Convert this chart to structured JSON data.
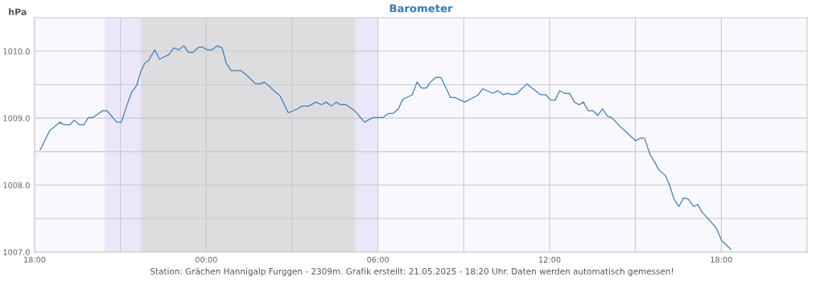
{
  "chart_data": {
    "type": "line",
    "title": "Barometer",
    "ylabel": "hPa",
    "annotations": [
      "Station: Grächen Hannigalp Furggen - 2309m. Grafik erstellt: 21.05.2025 - 18:20 Uhr. Daten werden automatisch gemessen!"
    ],
    "x": [
      "2025-05-20T18:12",
      "2025-05-20T18:32",
      "2025-05-20T18:40",
      "2025-05-20T18:53",
      "2025-05-20T19:02",
      "2025-05-20T19:14",
      "2025-05-20T19:23",
      "2025-05-20T19:34",
      "2025-05-20T19:43",
      "2025-05-20T19:53",
      "2025-05-20T20:03",
      "2025-05-20T20:22",
      "2025-05-20T20:32",
      "2025-05-20T20:52",
      "2025-05-20T21:02",
      "2025-05-20T21:12",
      "2025-05-20T21:23",
      "2025-05-20T21:34",
      "2025-05-20T21:43",
      "2025-05-20T21:51",
      "2025-05-20T21:59",
      "2025-05-20T22:12",
      "2025-05-20T22:22",
      "2025-05-20T22:42",
      "2025-05-20T22:52",
      "2025-05-20T23:02",
      "2025-05-20T23:13",
      "2025-05-20T23:23",
      "2025-05-20T23:32",
      "2025-05-20T23:44",
      "2025-05-20T23:52",
      "2025-05-21T00:02",
      "2025-05-21T00:12",
      "2025-05-21T00:23",
      "2025-05-21T00:33",
      "2025-05-21T00:42",
      "2025-05-21T00:52",
      "2025-05-21T01:13",
      "2025-05-21T01:25",
      "2025-05-21T01:42",
      "2025-05-21T01:53",
      "2025-05-21T02:01",
      "2025-05-21T02:10",
      "2025-05-21T02:27",
      "2025-05-21T02:35",
      "2025-05-21T02:52",
      "2025-05-21T03:12",
      "2025-05-21T03:20",
      "2025-05-21T03:35",
      "2025-05-21T03:50",
      "2025-05-21T04:02",
      "2025-05-21T04:11",
      "2025-05-21T04:23",
      "2025-05-21T04:32",
      "2025-05-21T04:42",
      "2025-05-21T04:53",
      "2025-05-21T05:13",
      "2025-05-21T05:22",
      "2025-05-21T05:32",
      "2025-05-21T05:50",
      "2025-05-21T06:11",
      "2025-05-21T06:22",
      "2025-05-21T06:32",
      "2025-05-21T06:43",
      "2025-05-21T06:52",
      "2025-05-21T07:12",
      "2025-05-21T07:22",
      "2025-05-21T07:31",
      "2025-05-21T07:42",
      "2025-05-21T07:50",
      "2025-05-21T08:02",
      "2025-05-21T08:12",
      "2025-05-21T08:32",
      "2025-05-21T08:41",
      "2025-05-21T09:02",
      "2025-05-21T09:29",
      "2025-05-21T09:40",
      "2025-05-21T10:01",
      "2025-05-21T10:11",
      "2025-05-21T10:23",
      "2025-05-21T10:31",
      "2025-05-21T10:43",
      "2025-05-21T10:52",
      "2025-05-21T11:12",
      "2025-05-21T11:41",
      "2025-05-21T11:52",
      "2025-05-21T12:02",
      "2025-05-21T12:12",
      "2025-05-21T12:21",
      "2025-05-21T12:32",
      "2025-05-21T12:42",
      "2025-05-21T12:52",
      "2025-05-21T13:02",
      "2025-05-21T13:11",
      "2025-05-21T13:21",
      "2025-05-21T13:31",
      "2025-05-21T13:41",
      "2025-05-21T13:51",
      "2025-05-21T14:01",
      "2025-05-21T14:10",
      "2025-05-21T14:30",
      "2025-05-21T14:56",
      "2025-05-21T15:01",
      "2025-05-21T15:10",
      "2025-05-21T15:19",
      "2025-05-21T15:31",
      "2025-05-21T15:40",
      "2025-05-21T15:49",
      "2025-05-21T16:03",
      "2025-05-21T16:11",
      "2025-05-21T16:21",
      "2025-05-21T16:31",
      "2025-05-21T16:41",
      "2025-05-21T16:51",
      "2025-05-21T17:02",
      "2025-05-21T17:11",
      "2025-05-21T17:19",
      "2025-05-21T17:41",
      "2025-05-21T17:50",
      "2025-05-21T18:01",
      "2025-05-21T18:20"
    ],
    "series": [
      {
        "color": "#3f7fbf",
        "values": [
          1008.53,
          1008.82,
          1008.86,
          1008.94,
          1008.9,
          1008.9,
          1008.97,
          1008.9,
          1008.9,
          1009.01,
          1009.01,
          1009.11,
          1009.11,
          1008.94,
          1008.94,
          1009.16,
          1009.38,
          1009.49,
          1009.7,
          1009.82,
          1009.86,
          1010.02,
          1009.88,
          1009.95,
          1010.05,
          1010.02,
          1010.08,
          1009.98,
          1009.98,
          1010.06,
          1010.06,
          1010.02,
          1010.02,
          1010.08,
          1010.05,
          1009.82,
          1009.71,
          1009.71,
          1009.64,
          1009.52,
          1009.51,
          1009.54,
          1009.49,
          1009.38,
          1009.33,
          1009.08,
          1009.14,
          1009.18,
          1009.18,
          1009.24,
          1009.2,
          1009.24,
          1009.18,
          1009.24,
          1009.2,
          1009.2,
          1009.1,
          1009.02,
          1008.94,
          1009.01,
          1009.01,
          1009.07,
          1009.07,
          1009.14,
          1009.28,
          1009.35,
          1009.54,
          1009.45,
          1009.45,
          1009.54,
          1009.61,
          1009.61,
          1009.31,
          1009.31,
          1009.24,
          1009.34,
          1009.44,
          1009.37,
          1009.41,
          1009.35,
          1009.37,
          1009.35,
          1009.37,
          1009.51,
          1009.35,
          1009.35,
          1009.27,
          1009.27,
          1009.41,
          1009.37,
          1009.37,
          1009.24,
          1009.2,
          1009.24,
          1009.11,
          1009.11,
          1009.04,
          1009.14,
          1009.03,
          1009.01,
          1008.86,
          1008.69,
          1008.66,
          1008.7,
          1008.7,
          1008.45,
          1008.35,
          1008.23,
          1008.14,
          1008.01,
          1007.79,
          1007.68,
          1007.81,
          1007.79,
          1007.68,
          1007.71,
          1007.6,
          1007.43,
          1007.35,
          1007.17,
          1007.04
        ]
      }
    ],
    "xlim": [
      "2025-05-20T18:00",
      "2025-05-21T21:00"
    ],
    "ylim": [
      1007.0,
      1010.5
    ],
    "xticks": [
      {
        "value": "2025-05-20T18:00",
        "label": "18:00"
      },
      {
        "value": "2025-05-20T21:00",
        "label": null
      },
      {
        "value": "2025-05-21T00:00",
        "label": "00:00"
      },
      {
        "value": "2025-05-21T03:00",
        "label": null
      },
      {
        "value": "2025-05-21T06:00",
        "label": "06:00"
      },
      {
        "value": "2025-05-21T09:00",
        "label": null
      },
      {
        "value": "2025-05-21T12:00",
        "label": "12:00"
      },
      {
        "value": "2025-05-21T15:00",
        "label": null
      },
      {
        "value": "2025-05-21T18:00",
        "label": "18:00"
      }
    ],
    "yticks": [
      {
        "value": 1007.0,
        "label": "1007.0"
      },
      {
        "value": 1007.5,
        "label": null
      },
      {
        "value": 1008.0,
        "label": "1008.0"
      },
      {
        "value": 1008.5,
        "label": null
      },
      {
        "value": 1009.0,
        "label": "1009.0"
      },
      {
        "value": 1009.5,
        "label": null
      },
      {
        "value": 1010.0,
        "label": "1010.0"
      }
    ],
    "bands": [
      {
        "axis": "x",
        "from": "2025-05-20T20:27",
        "to": "2025-05-21T06:00",
        "color": "#ece7f8"
      },
      {
        "axis": "x",
        "from": "2025-05-20T21:43",
        "to": "2025-05-21T05:12",
        "color": "#dddde0"
      }
    ],
    "grid": true,
    "legend": false,
    "marker": "none",
    "line_style": "solid"
  }
}
